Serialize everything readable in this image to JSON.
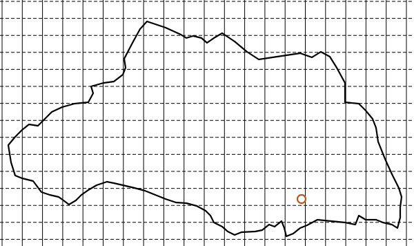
{
  "map": {
    "grid": {
      "vertical_lines": "solid",
      "horizontal_lines": "dashed",
      "line_color": "#000000"
    },
    "region_outline": {
      "stroke_color": "#000000",
      "fill": "none"
    },
    "marker": {
      "shape": "ring",
      "stroke_color": "#b5561b"
    }
  }
}
